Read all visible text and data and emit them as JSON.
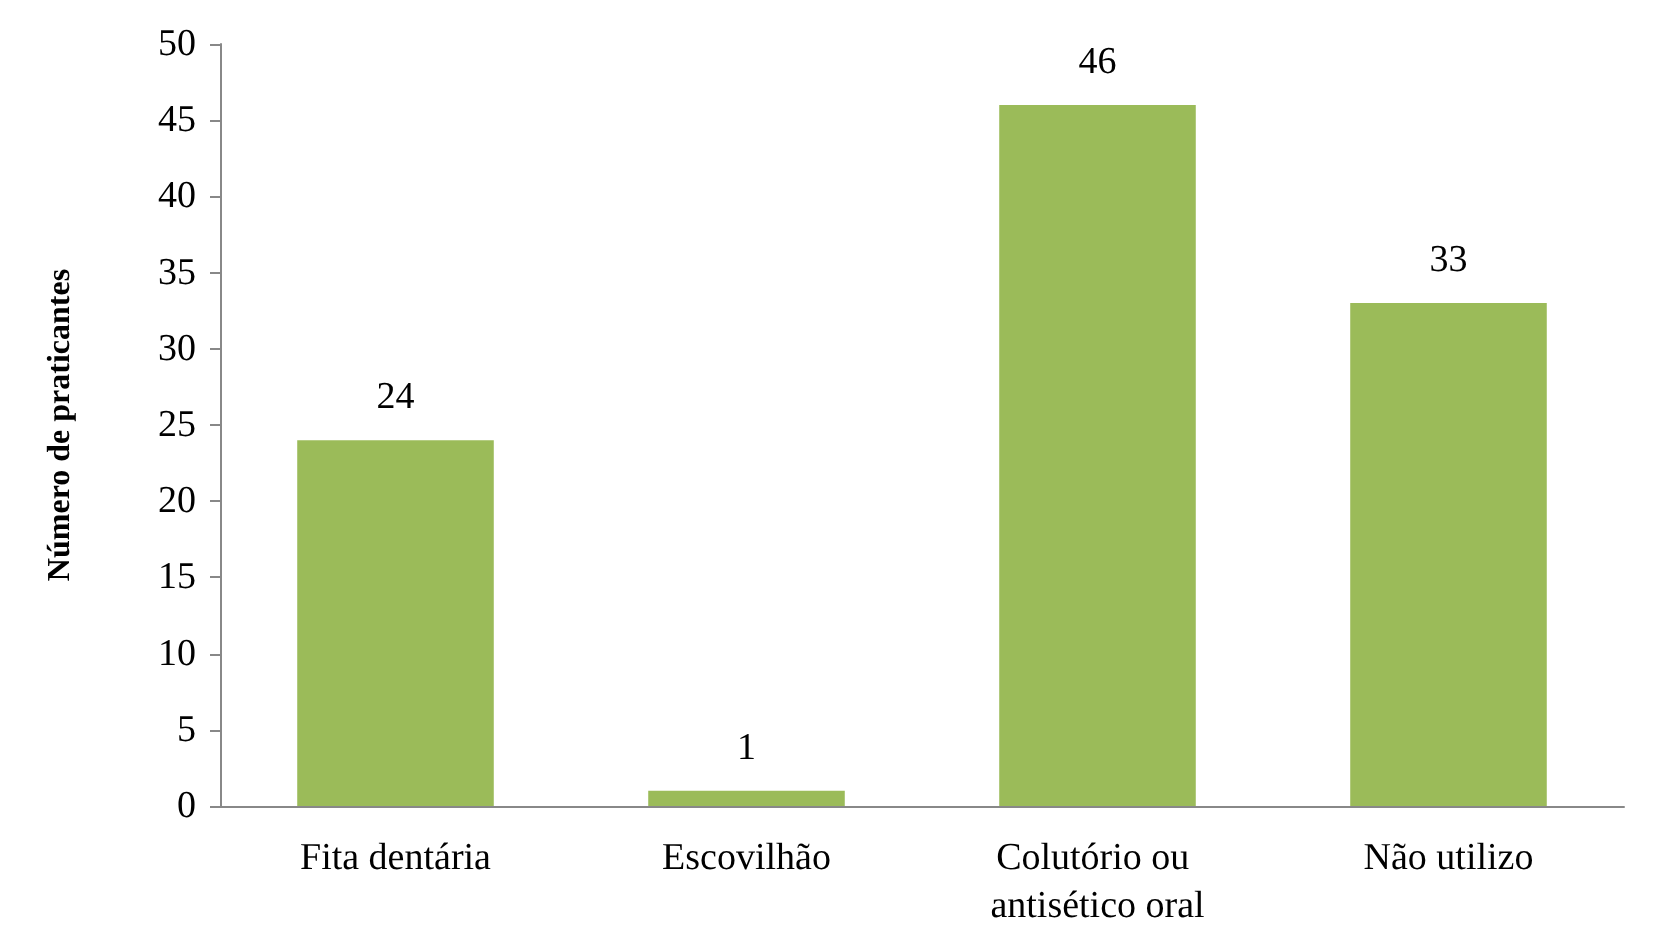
{
  "chart_data": {
    "type": "bar",
    "ylabel": "Número de praticantes",
    "categories": [
      "Fita dentária",
      "Escovilhão",
      "Colutório ou antisético oral",
      "Não utilizo"
    ],
    "values": [
      24,
      1,
      46,
      33
    ],
    "color": "#9bbb59",
    "ylim": [
      0,
      50
    ],
    "yticks": [
      0,
      5,
      10,
      15,
      20,
      25,
      30,
      35,
      40,
      45,
      50
    ],
    "grid": false,
    "data_labels": true
  }
}
